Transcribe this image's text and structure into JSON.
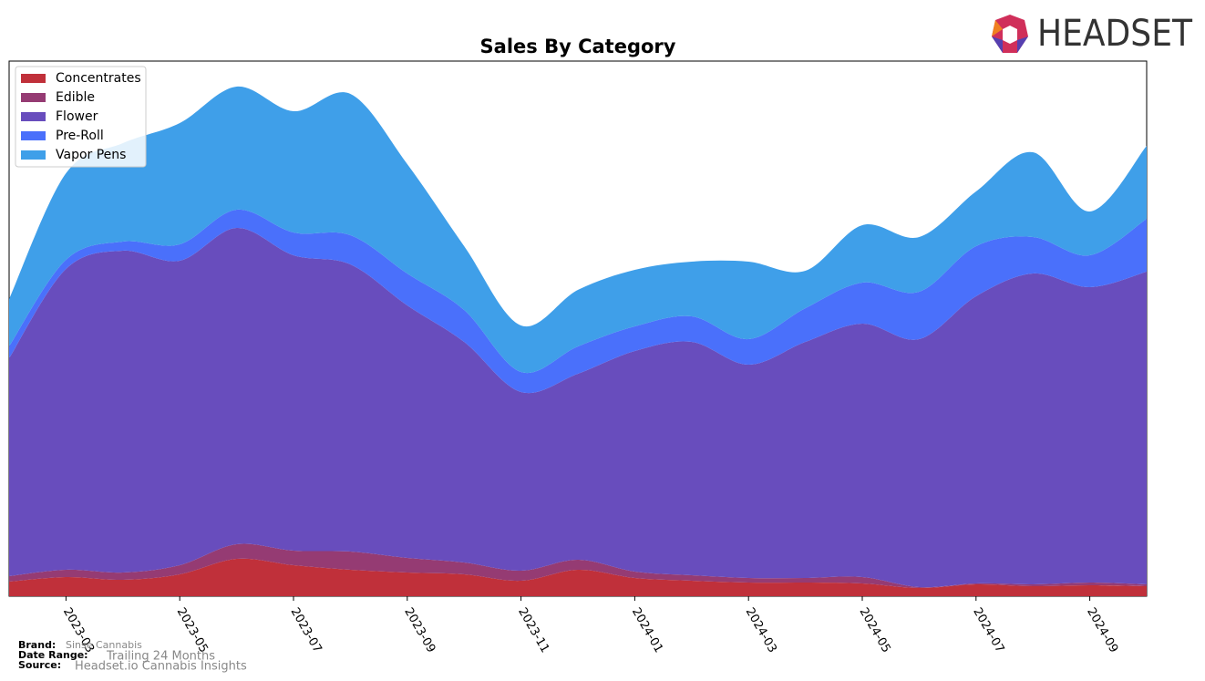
{
  "chart_data": {
    "type": "stacked_area",
    "title": "Sales By Category",
    "logo_text": "HEADSET",
    "x": [
      "2023-02",
      "2023-03",
      "2023-04",
      "2023-05",
      "2023-06",
      "2023-07",
      "2023-08",
      "2023-09",
      "2023-10",
      "2023-11",
      "2023-12",
      "2024-01",
      "2024-02",
      "2024-03",
      "2024-04",
      "2024-05",
      "2024-06",
      "2024-07",
      "2024-08",
      "2024-09",
      "2024-10"
    ],
    "xlim": [
      "2023-02",
      "2024-10"
    ],
    "xticks": [
      "2023-03",
      "2023-05",
      "2023-07",
      "2023-09",
      "2023-11",
      "2024-01",
      "2024-03",
      "2024-05",
      "2024-07",
      "2024-09"
    ],
    "ylim": [
      0,
      587
    ],
    "legend": "upper left",
    "series": [
      {
        "name": "Concentrates",
        "color": "#c0303a",
        "values": [
          16,
          21,
          18,
          24,
          41,
          34,
          29,
          26,
          24,
          17,
          29,
          20,
          17,
          15,
          15,
          14,
          9,
          13,
          11,
          12,
          11
        ]
      },
      {
        "name": "Edible",
        "color": "#953b73",
        "values": [
          6,
          8,
          8,
          10,
          16,
          16,
          20,
          16,
          13,
          11,
          11,
          7,
          6,
          5,
          5,
          7,
          1,
          1,
          2,
          3,
          2
        ]
      },
      {
        "name": "Flower",
        "color": "#684dbd",
        "values": [
          239,
          330,
          353,
          334,
          347,
          324,
          315,
          277,
          242,
          196,
          204,
          242,
          256,
          234,
          259,
          278,
          272,
          315,
          341,
          324,
          343
        ]
      },
      {
        "name": "Pre-Roll",
        "color": "#4a70fb",
        "values": [
          13,
          10,
          10,
          18,
          20,
          25,
          32,
          35,
          35,
          22,
          30,
          27,
          28,
          28,
          37,
          45,
          52,
          55,
          40,
          35,
          58
        ]
      },
      {
        "name": "Vapor Pens",
        "color": "#3f9fe9",
        "values": [
          52,
          95,
          108,
          133,
          135,
          133,
          155,
          120,
          70,
          51,
          62,
          62,
          60,
          85,
          41,
          63,
          60,
          60,
          93,
          48,
          80
        ]
      }
    ],
    "footer": [
      {
        "label": "Brand:",
        "value": "Sinse Cannabis"
      },
      {
        "label": "Date Range:",
        "value": "Trailing 24 Months"
      },
      {
        "label": "Source:",
        "value": "Headset.io Cannabis Insights"
      }
    ]
  }
}
